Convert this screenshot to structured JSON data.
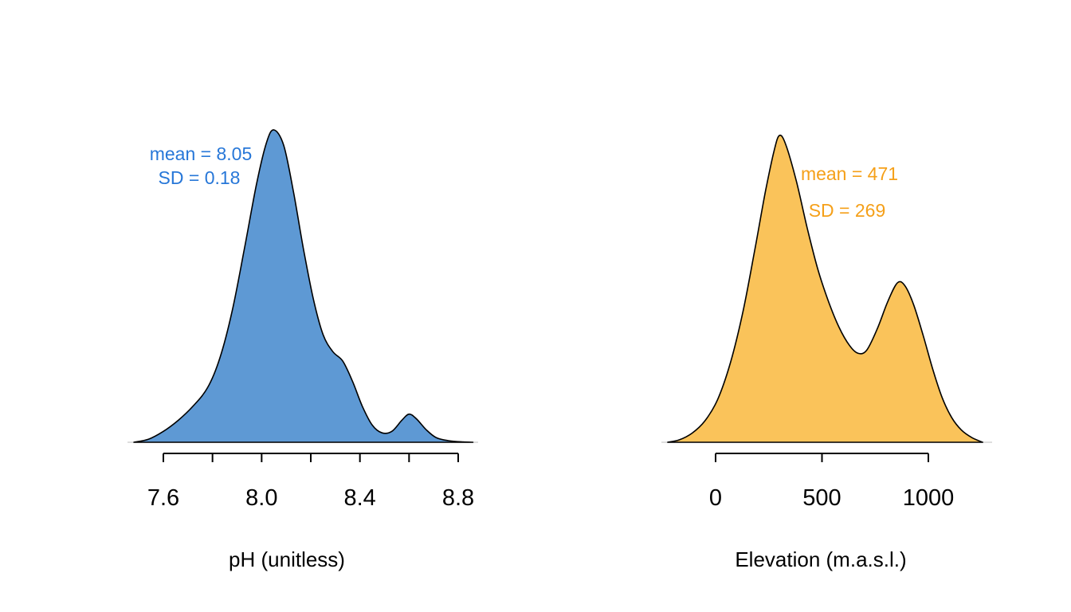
{
  "figure": {
    "background": "#ffffff"
  },
  "chart_data": [
    {
      "type": "area",
      "title": "",
      "xlabel": "pH (unitless)",
      "ylabel": "",
      "fill_color": "#5E99D4",
      "line_color": "#000000",
      "baseline_color": "#c9c9c9",
      "axis_color": "#000000",
      "grid": false,
      "legend": "none",
      "annotation": {
        "line1": "mean = 8.05",
        "line2": "SD = 0.18",
        "color": "#2777D8"
      },
      "x_ticks": [
        7.6,
        7.8,
        8.0,
        8.2,
        8.4,
        8.6,
        8.8
      ],
      "x_tick_labels": [
        "7.6",
        "",
        "8.0",
        "",
        "8.4",
        "",
        "8.8"
      ],
      "xlim": [
        7.45,
        8.9
      ],
      "density": [
        [
          7.48,
          0.0
        ],
        [
          7.54,
          0.01
        ],
        [
          7.6,
          0.035
        ],
        [
          7.66,
          0.07
        ],
        [
          7.72,
          0.115
        ],
        [
          7.78,
          0.175
        ],
        [
          7.83,
          0.27
        ],
        [
          7.88,
          0.42
        ],
        [
          7.93,
          0.62
        ],
        [
          7.98,
          0.83
        ],
        [
          8.02,
          0.96
        ],
        [
          8.05,
          1.0
        ],
        [
          8.09,
          0.95
        ],
        [
          8.13,
          0.8
        ],
        [
          8.17,
          0.62
        ],
        [
          8.21,
          0.46
        ],
        [
          8.25,
          0.345
        ],
        [
          8.29,
          0.29
        ],
        [
          8.33,
          0.26
        ],
        [
          8.37,
          0.195
        ],
        [
          8.41,
          0.115
        ],
        [
          8.45,
          0.055
        ],
        [
          8.49,
          0.03
        ],
        [
          8.53,
          0.035
        ],
        [
          8.57,
          0.07
        ],
        [
          8.6,
          0.09
        ],
        [
          8.63,
          0.075
        ],
        [
          8.67,
          0.04
        ],
        [
          8.71,
          0.015
        ],
        [
          8.76,
          0.005
        ],
        [
          8.82,
          0.001
        ],
        [
          8.86,
          0.0
        ]
      ]
    },
    {
      "type": "area",
      "title": "",
      "xlabel": "Elevation (m.a.s.l.)",
      "ylabel": "",
      "fill_color": "#FAC35A",
      "line_color": "#000000",
      "baseline_color": "#c9c9c9",
      "axis_color": "#000000",
      "grid": false,
      "legend": "none",
      "annotation": {
        "line1": "mean = 471",
        "line2": "SD = 269",
        "color": "#F5A019"
      },
      "x_ticks": [
        0,
        500,
        1000
      ],
      "x_tick_labels": [
        "0",
        "500",
        "1000"
      ],
      "xlim": [
        -250,
        1350
      ],
      "density": [
        [
          -225,
          0.0
        ],
        [
          -170,
          0.008
        ],
        [
          -110,
          0.03
        ],
        [
          -50,
          0.07
        ],
        [
          10,
          0.14
        ],
        [
          70,
          0.26
        ],
        [
          130,
          0.43
        ],
        [
          185,
          0.63
        ],
        [
          235,
          0.82
        ],
        [
          275,
          0.95
        ],
        [
          300,
          1.0
        ],
        [
          330,
          0.97
        ],
        [
          380,
          0.85
        ],
        [
          430,
          0.7
        ],
        [
          480,
          0.565
        ],
        [
          530,
          0.46
        ],
        [
          580,
          0.375
        ],
        [
          630,
          0.315
        ],
        [
          670,
          0.29
        ],
        [
          710,
          0.3
        ],
        [
          760,
          0.37
        ],
        [
          810,
          0.46
        ],
        [
          855,
          0.52
        ],
        [
          890,
          0.51
        ],
        [
          930,
          0.45
        ],
        [
          975,
          0.35
        ],
        [
          1020,
          0.24
        ],
        [
          1065,
          0.145
        ],
        [
          1110,
          0.08
        ],
        [
          1155,
          0.04
        ],
        [
          1205,
          0.015
        ],
        [
          1255,
          0.0
        ]
      ]
    }
  ]
}
